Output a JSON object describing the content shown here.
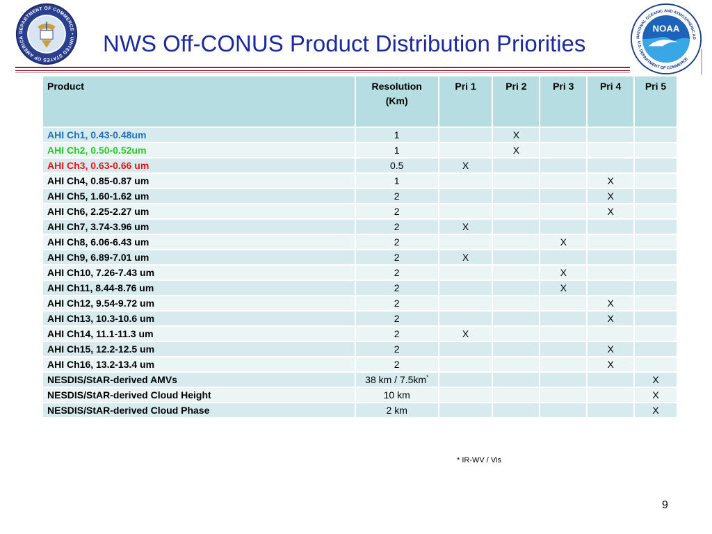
{
  "slide": {
    "title": "NWS Off-CONUS Product Distribution Priorities",
    "page_number": "9",
    "footnote": "* IR-WV / Vis",
    "colors": {
      "title": "#1a2a9e",
      "rule": "#a31c2c",
      "header_bg": "#b6dde1",
      "row_odd": "#d7ebee",
      "row_even": "#ecf5f6"
    }
  },
  "logos": {
    "left": {
      "icon": "us-department-of-commerce-seal",
      "ring_text": "DEPARTMENT OF COMMERCE • UNITED STATES OF AMERICA •"
    },
    "right": {
      "icon": "noaa-logo",
      "ring_text_top": "NATIONAL OCEANIC AND ATMOSPHERIC ADMINISTRATION",
      "ring_text_bottom": "U.S. DEPARTMENT OF COMMERCE",
      "center_text": "NOAA"
    }
  },
  "table": {
    "headers": [
      "Product",
      "Resolution",
      "(Km)",
      "Pri 1",
      "Pri 2",
      "Pri 3",
      "Pri 4",
      "Pri 5"
    ],
    "rows": [
      {
        "product": "AHI Ch1, 0.43-0.48um",
        "color": "#1f6fbf",
        "res": "1",
        "res_sup": "",
        "p1": "",
        "p2": "X",
        "p3": "",
        "p4": "",
        "p5": ""
      },
      {
        "product": "AHI Ch2, 0.50-0.52um",
        "color": "#22cc22",
        "res": "1",
        "res_sup": "",
        "p1": "",
        "p2": "X",
        "p3": "",
        "p4": "",
        "p5": ""
      },
      {
        "product": "AHI Ch3, 0.63-0.66 um",
        "color": "#ee1111",
        "res": "0.5",
        "res_sup": "",
        "p1": "X",
        "p2": "",
        "p3": "",
        "p4": "",
        "p5": ""
      },
      {
        "product": "AHI Ch4, 0.85-0.87 um",
        "color": "#000000",
        "res": "1",
        "res_sup": "",
        "p1": "",
        "p2": "",
        "p3": "",
        "p4": "X",
        "p5": ""
      },
      {
        "product": "AHI Ch5, 1.60-1.62 um",
        "color": "#000000",
        "res": "2",
        "res_sup": "",
        "p1": "",
        "p2": "",
        "p3": "",
        "p4": "X",
        "p5": ""
      },
      {
        "product": "AHI Ch6, 2.25-2.27 um",
        "color": "#000000",
        "res": "2",
        "res_sup": "",
        "p1": "",
        "p2": "",
        "p3": "",
        "p4": "X",
        "p5": ""
      },
      {
        "product": "AHI Ch7, 3.74-3.96 um",
        "color": "#000000",
        "res": "2",
        "res_sup": "",
        "p1": "X",
        "p2": "",
        "p3": "",
        "p4": "",
        "p5": ""
      },
      {
        "product": "AHI Ch8, 6.06-6.43 um",
        "color": "#000000",
        "res": "2",
        "res_sup": "",
        "p1": "",
        "p2": "",
        "p3": "X",
        "p4": "",
        "p5": ""
      },
      {
        "product": "AHI Ch9, 6.89-7.01 um",
        "color": "#000000",
        "res": "2",
        "res_sup": "",
        "p1": "X",
        "p2": "",
        "p3": "",
        "p4": "",
        "p5": ""
      },
      {
        "product": "AHI Ch10, 7.26-7.43 um",
        "color": "#000000",
        "res": "2",
        "res_sup": "",
        "p1": "",
        "p2": "",
        "p3": "X",
        "p4": "",
        "p5": ""
      },
      {
        "product": "AHI Ch11, 8.44-8.76 um",
        "color": "#000000",
        "res": "2",
        "res_sup": "",
        "p1": "",
        "p2": "",
        "p3": "X",
        "p4": "",
        "p5": ""
      },
      {
        "product": "AHI Ch12, 9.54-9.72 um",
        "color": "#000000",
        "res": "2",
        "res_sup": "",
        "p1": "",
        "p2": "",
        "p3": "",
        "p4": "X",
        "p5": ""
      },
      {
        "product": "AHI Ch13, 10.3-10.6 um",
        "color": "#000000",
        "res": "2",
        "res_sup": "",
        "p1": "",
        "p2": "",
        "p3": "",
        "p4": "X",
        "p5": ""
      },
      {
        "product": "AHI Ch14, 11.1-11.3 um",
        "color": "#000000",
        "res": "2",
        "res_sup": "",
        "p1": "X",
        "p2": "",
        "p3": "",
        "p4": "",
        "p5": ""
      },
      {
        "product": "AHI Ch15, 12.2-12.5 um",
        "color": "#000000",
        "res": "2",
        "res_sup": "",
        "p1": "",
        "p2": "",
        "p3": "",
        "p4": "X",
        "p5": ""
      },
      {
        "product": "AHI Ch16, 13.2-13.4 um",
        "color": "#000000",
        "res": "2",
        "res_sup": "",
        "p1": "",
        "p2": "",
        "p3": "",
        "p4": "X",
        "p5": ""
      },
      {
        "product": "NESDIS/StAR-derived AMVs",
        "color": "#000000",
        "res": "38 km / 7.5km",
        "res_sup": "*",
        "p1": "",
        "p2": "",
        "p3": "",
        "p4": "",
        "p5": "X"
      },
      {
        "product": "NESDIS/StAR-derived Cloud Height",
        "color": "#000000",
        "res": "10 km",
        "res_sup": "",
        "p1": "",
        "p2": "",
        "p3": "",
        "p4": "",
        "p5": "X"
      },
      {
        "product": "NESDIS/StAR-derived Cloud Phase",
        "color": "#000000",
        "res": "2 km",
        "res_sup": "",
        "p1": "",
        "p2": "",
        "p3": "",
        "p4": "",
        "p5": "X"
      }
    ]
  }
}
